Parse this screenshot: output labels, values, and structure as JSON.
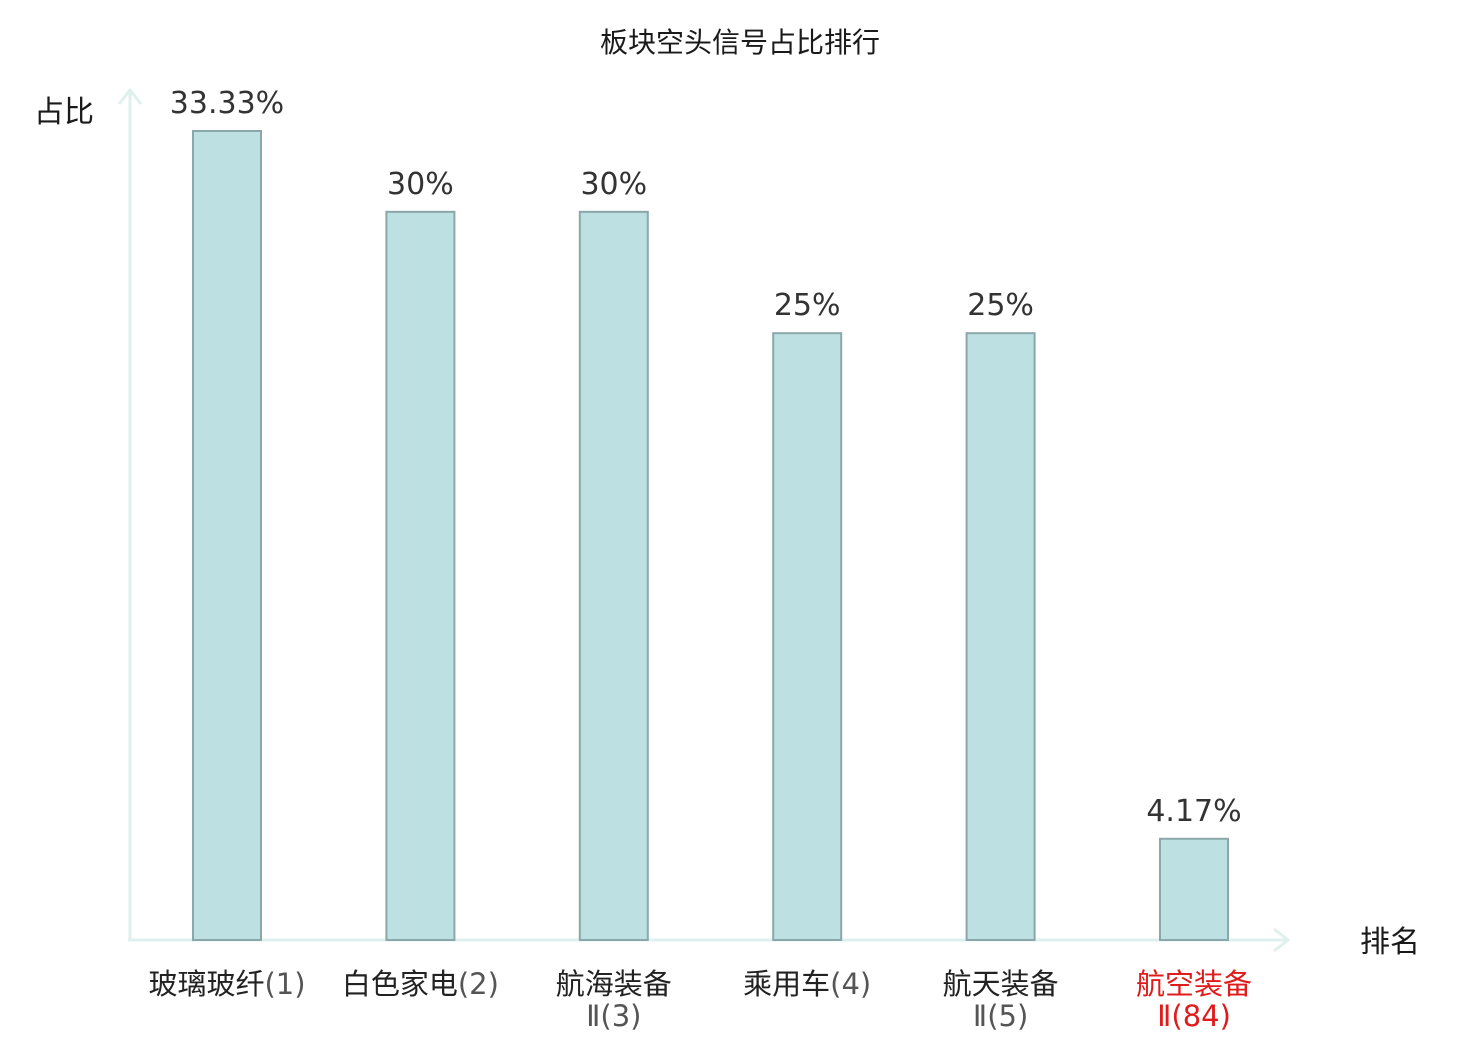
{
  "chart_data": {
    "type": "bar",
    "title": "板块空头信号占比排行",
    "xlabel": "排名",
    "ylabel": "占比",
    "ylim": [
      0,
      35
    ],
    "grid": false,
    "legend": "none",
    "categories": [
      {
        "name": "玻璃玻纤",
        "line2": "",
        "rank": "(1)",
        "highlight": false
      },
      {
        "name": "白色家电",
        "line2": "",
        "rank": "(2)",
        "highlight": false
      },
      {
        "name": "航海装备",
        "line2": "Ⅱ",
        "rank": "(3)",
        "highlight": false
      },
      {
        "name": "乘用车",
        "line2": "",
        "rank": "(4)",
        "highlight": false
      },
      {
        "name": "航天装备",
        "line2": "Ⅱ",
        "rank": "(5)",
        "highlight": false
      },
      {
        "name": "航空装备",
        "line2": "Ⅱ",
        "rank": "(84)",
        "highlight": true
      }
    ],
    "values": [
      33.33,
      30,
      30,
      25,
      25,
      4.17
    ],
    "value_labels": [
      "33.33%",
      "30%",
      "30%",
      "25%",
      "25%",
      "4.17%"
    ]
  },
  "colors": {
    "bar_fill": "#bde0e3",
    "bar_stroke": "#8aa7a9",
    "axis": "#dff1ef",
    "label_text": "#222222",
    "rank_text": "#555555",
    "highlight": "#e01b1b"
  }
}
